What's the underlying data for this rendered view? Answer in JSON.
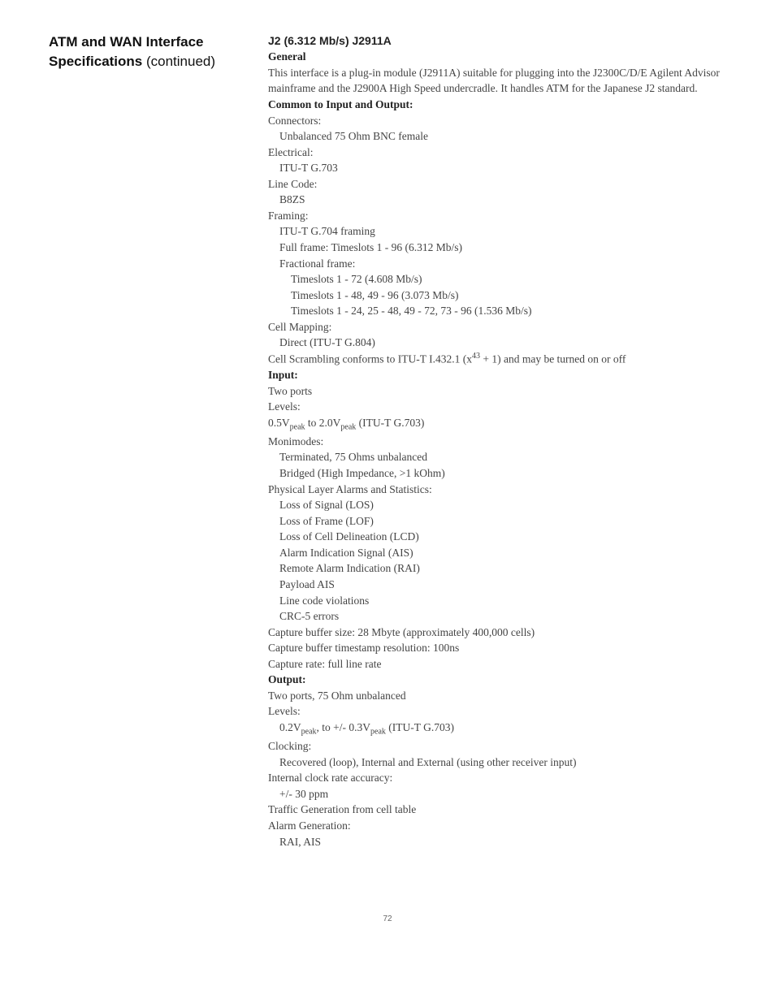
{
  "left": {
    "title_line1": "ATM and WAN Interface",
    "title_line2": "Specifications",
    "continued": " (continued)"
  },
  "right": {
    "subsection": "J2 (6.312 Mb/s) J2911A",
    "general_label": "General",
    "general_body": "This interface is a plug-in module (J2911A) suitable for plugging into the J2300C/D/E Agilent Advisor mainframe and the J2900A High Speed undercradle. It handles ATM for the Japanese J2 standard.",
    "common_label": "Common to Input and Output:",
    "connectors_label": "Connectors:",
    "connectors_val": "Unbalanced 75 Ohm BNC female",
    "electrical_label": "Electrical:",
    "electrical_val": "ITU-T G.703",
    "linecode_label": "Line Code:",
    "linecode_val": "B8ZS",
    "framing_label": "Framing:",
    "framing_val1": "ITU-T G.704 framing",
    "framing_val2": "Full frame: Timeslots 1 - 96 (6.312 Mb/s)",
    "framing_val3": "Fractional frame:",
    "framing_val4": "Timeslots 1 - 72 (4.608 Mb/s)",
    "framing_val5": "Timeslots 1 - 48, 49 - 96 (3.073 Mb/s)",
    "framing_val6": "Timeslots 1 - 24, 25 - 48, 49 - 72, 73 - 96 (1.536 Mb/s)",
    "cellmap_label": "Cell Mapping:",
    "cellmap_val": "Direct (ITU-T G.804)",
    "scramble_pre": "Cell Scrambling conforms to ITU-T I.432.1 (x",
    "scramble_exp": "43",
    "scramble_post": " + 1) and may be turned on or off",
    "input_label": "Input:",
    "input_twoports": "Two ports",
    "levels_label": "Levels:",
    "levels_05": " 0.5V",
    "levels_peak": "peak",
    "levels_to": " to 2.0V",
    "levels_peak2": "peak",
    "levels_itu": "  (ITU-T G.703)",
    "monimodes_label": "Monimodes:",
    "monimodes_val1": "Terminated, 75 Ohms unbalanced",
    "monimodes_val2": "Bridged (High Impedance, >1 kOhm)",
    "physlayer_label": "Physical Layer Alarms and Statistics:",
    "phys1": "Loss of Signal (LOS)",
    "phys2": "Loss of Frame (LOF)",
    "phys3": "Loss of Cell Delineation (LCD)",
    "phys4": "Alarm Indication Signal (AIS)",
    "phys5": "Remote Alarm Indication (RAI)",
    "phys6": "Payload AIS",
    "phys7": "Line code violations",
    "phys8": "CRC-5 errors",
    "capbuf": "Capture buffer size: 28 Mbyte (approximately 400,000 cells)",
    "capts": "Capture buffer timestamp resolution: 100ns",
    "caprate": "Capture rate: full line rate",
    "output_label": "Output:",
    "output_ports": "Two ports, 75 Ohm unbalanced",
    "outlevels_label": "Levels:",
    "outlevels_pre": "0.2V",
    "outlevels_peak1": "peak",
    "outlevels_mid": ", to +/- 0.3V",
    "outlevels_peak2": "peak",
    "outlevels_itu": " (ITU-T G.703)",
    "clocking_label": "Clocking:",
    "clocking_val": "Recovered (loop), Internal and External (using other receiver input)",
    "intclk_label": "Internal clock rate accuracy:",
    "intclk_val": "+/- 30 ppm",
    "traffic": "Traffic Generation from cell table",
    "alarmgen_label": "Alarm Generation:",
    "alarmgen_val": "RAI, AIS"
  },
  "page_number": "72"
}
